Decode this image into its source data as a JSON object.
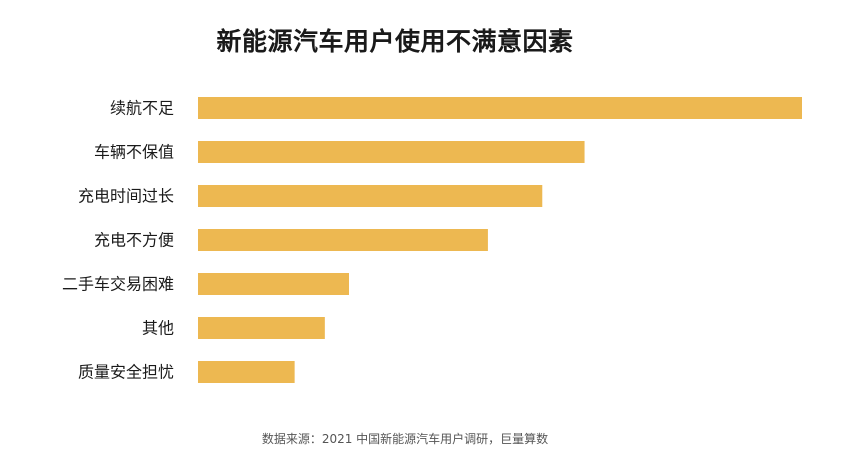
{
  "chart_data": {
    "type": "bar",
    "orientation": "horizontal",
    "title": "新能源汽车用户使用不满意因素",
    "categories": [
      "续航不足",
      "车辆不保值",
      "充电时间过长",
      "充电不方便",
      "二手车交易困难",
      "其他",
      "质量安全担忧"
    ],
    "values": [
      100,
      64,
      57,
      48,
      25,
      21,
      16
    ],
    "xlim": [
      0,
      100
    ],
    "grid": false,
    "legend": "none",
    "bar_color": "#EDB851",
    "label_color": "#1a1a1a"
  },
  "source": "数据来源：2021 中国新能源汽车用户调研，巨量算数"
}
